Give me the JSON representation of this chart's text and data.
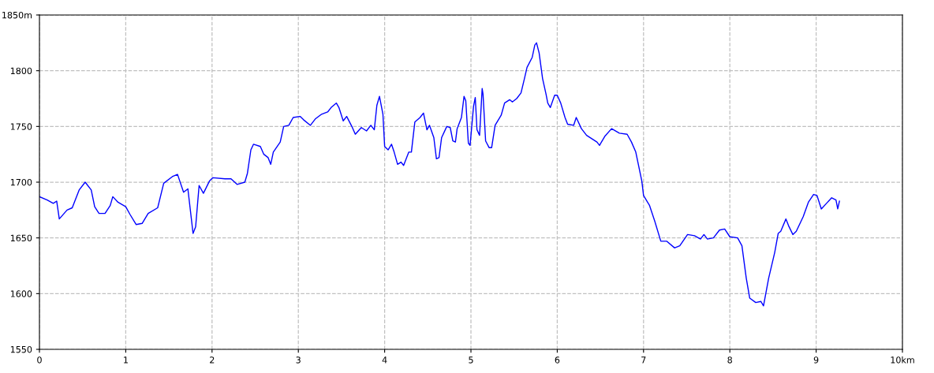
{
  "chart_data": {
    "type": "line",
    "grid": true,
    "line_style": "solid",
    "marker": "none",
    "xlim": [
      0,
      10
    ],
    "ylim": [
      1550,
      1850
    ],
    "xticks": [
      0,
      1,
      2,
      3,
      4,
      5,
      6,
      7,
      8,
      9,
      {
        "value": 10,
        "label": "10km"
      }
    ],
    "yticks": [
      1550,
      1600,
      1650,
      1700,
      1750,
      1800,
      {
        "value": 1850,
        "label": "1850m"
      }
    ],
    "series": [
      {
        "color": "#0000ff",
        "x": [
          0,
          0.09,
          0.16,
          0.2,
          0.23,
          0.32,
          0.38,
          0.46,
          0.53,
          0.6,
          0.64,
          0.69,
          0.76,
          0.82,
          0.85,
          0.91,
          1.0,
          1.05,
          1.12,
          1.19,
          1.26,
          1.37,
          1.44,
          1.54,
          1.6,
          1.67,
          1.72,
          1.78,
          1.81,
          1.85,
          1.9,
          1.97,
          2.01,
          2.15,
          2.22,
          2.29,
          2.38,
          2.41,
          2.45,
          2.48,
          2.56,
          2.6,
          2.65,
          2.68,
          2.71,
          2.79,
          2.83,
          2.89,
          2.94,
          3.02,
          3.06,
          3.14,
          3.2,
          3.27,
          3.34,
          3.38,
          3.44,
          3.47,
          3.52,
          3.56,
          3.62,
          3.66,
          3.73,
          3.79,
          3.84,
          3.88,
          3.91,
          3.94,
          3.98,
          4.0,
          4.04,
          4.08,
          4.11,
          4.15,
          4.19,
          4.22,
          4.28,
          4.31,
          4.35,
          4.41,
          4.45,
          4.49,
          4.52,
          4.57,
          4.6,
          4.63,
          4.66,
          4.72,
          4.76,
          4.79,
          4.82,
          4.84,
          4.89,
          4.92,
          4.94,
          4.97,
          4.99,
          5.03,
          5.05,
          5.07,
          5.1,
          5.13,
          5.14,
          5.17,
          5.21,
          5.24,
          5.28,
          5.35,
          5.39,
          5.45,
          5.48,
          5.53,
          5.58,
          5.62,
          5.65,
          5.71,
          5.74,
          5.76,
          5.79,
          5.83,
          5.87,
          5.89,
          5.92,
          5.97,
          6.0,
          6.04,
          6.09,
          6.12,
          6.19,
          6.22,
          6.28,
          6.34,
          6.4,
          6.46,
          6.49,
          6.55,
          6.63,
          6.72,
          6.81,
          6.86,
          6.91,
          6.98,
          7.0,
          7.07,
          7.13,
          7.2,
          7.27,
          7.36,
          7.42,
          7.51,
          7.59,
          7.66,
          7.7,
          7.74,
          7.81,
          7.88,
          7.94,
          8.0,
          8.09,
          8.14,
          8.19,
          8.23,
          8.3,
          8.36,
          8.39,
          8.45,
          8.52,
          8.56,
          8.59,
          8.65,
          8.68,
          8.73,
          8.77,
          8.85,
          8.91,
          8.97,
          9.01,
          9.06,
          9.12,
          9.18,
          9.23,
          9.25,
          9.27
        ],
        "values": [
          1687,
          1684,
          1681,
          1683,
          1667,
          1675,
          1677,
          1693,
          1700,
          1693,
          1678,
          1672,
          1672,
          1679,
          1687,
          1682,
          1678,
          1671,
          1662,
          1663,
          1672,
          1677,
          1699,
          1705,
          1707,
          1691,
          1694,
          1654,
          1660,
          1697,
          1690,
          1701,
          1704,
          1703,
          1703,
          1698,
          1700,
          1708,
          1729,
          1734,
          1732,
          1725,
          1722,
          1716,
          1727,
          1736,
          1750,
          1751,
          1758,
          1759,
          1756,
          1751,
          1757,
          1761,
          1763,
          1767,
          1771,
          1767,
          1755,
          1759,
          1750,
          1743,
          1749,
          1746,
          1751,
          1747,
          1769,
          1777,
          1761,
          1732,
          1729,
          1734,
          1727,
          1716,
          1718,
          1715,
          1727,
          1727,
          1754,
          1758,
          1762,
          1747,
          1751,
          1740,
          1721,
          1722,
          1740,
          1750,
          1749,
          1737,
          1736,
          1748,
          1758,
          1777,
          1773,
          1735,
          1733,
          1768,
          1776,
          1747,
          1742,
          1784,
          1779,
          1737,
          1731,
          1731,
          1751,
          1760,
          1771,
          1774,
          1772,
          1775,
          1780,
          1793,
          1803,
          1812,
          1823,
          1825,
          1816,
          1793,
          1779,
          1771,
          1767,
          1778,
          1778,
          1771,
          1758,
          1752,
          1751,
          1758,
          1748,
          1742,
          1739,
          1736,
          1733,
          1741,
          1748,
          1744,
          1743,
          1736,
          1727,
          1701,
          1688,
          1679,
          1665,
          1647,
          1647,
          1641,
          1643,
          1653,
          1652,
          1649,
          1653,
          1649,
          1650,
          1657,
          1658,
          1651,
          1650,
          1643,
          1614,
          1596,
          1592,
          1593,
          1589,
          1614,
          1637,
          1654,
          1656,
          1667,
          1661,
          1653,
          1656,
          1669,
          1682,
          1689,
          1688,
          1676,
          1681,
          1686,
          1684,
          1676,
          1683
        ]
      }
    ]
  }
}
